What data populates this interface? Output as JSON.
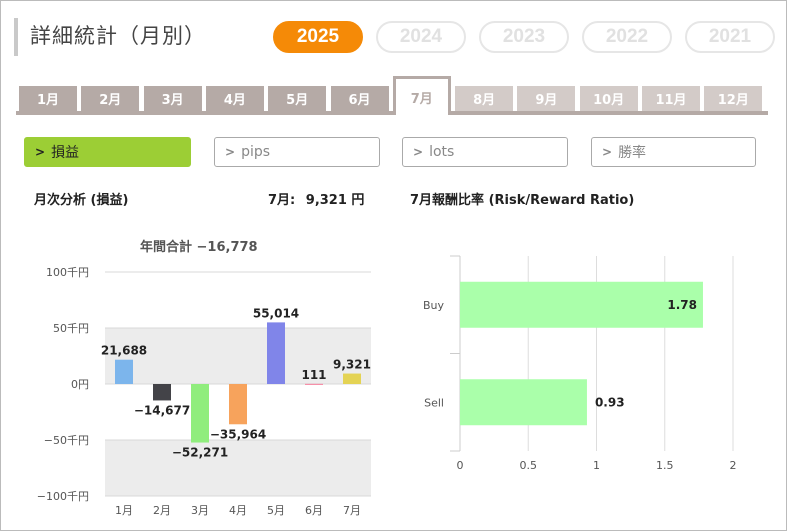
{
  "title": "詳細統計（月別）",
  "years": [
    {
      "label": "2025",
      "active": true
    },
    {
      "label": "2024",
      "active": false
    },
    {
      "label": "2023",
      "active": false
    },
    {
      "label": "2022",
      "active": false
    },
    {
      "label": "2021",
      "active": false
    }
  ],
  "months": [
    {
      "label": "1月",
      "state": "past"
    },
    {
      "label": "2月",
      "state": "past"
    },
    {
      "label": "3月",
      "state": "past"
    },
    {
      "label": "4月",
      "state": "past"
    },
    {
      "label": "5月",
      "state": "past"
    },
    {
      "label": "6月",
      "state": "past"
    },
    {
      "label": "7月",
      "state": "active"
    },
    {
      "label": "8月",
      "state": "future"
    },
    {
      "label": "9月",
      "state": "future"
    },
    {
      "label": "10月",
      "state": "future"
    },
    {
      "label": "11月",
      "state": "future"
    },
    {
      "label": "12月",
      "state": "future"
    }
  ],
  "filters": [
    {
      "label": "損益",
      "active": true
    },
    {
      "label": "pips",
      "active": false
    },
    {
      "label": "lots",
      "active": false
    },
    {
      "label": "勝率",
      "active": false
    }
  ],
  "monthly": {
    "title": "月次分析 (損益)",
    "current_month_label": "7月:",
    "current_month_value": "9,321 円",
    "annual_total": "年間合計 −16,778"
  },
  "rr": {
    "title": "7月報酬比率 (Risk/Reward Ratio)"
  },
  "chart_data": [
    {
      "type": "bar",
      "title": "年間合計 −16,778",
      "categories": [
        "1月",
        "2月",
        "3月",
        "4月",
        "5月",
        "6月",
        "7月"
      ],
      "values": [
        21688,
        -14677,
        -52271,
        -35964,
        55014,
        111,
        9321
      ],
      "value_labels": [
        "21,688",
        "−14,677",
        "−52,271",
        "−35,964",
        "55,014",
        "111",
        "9,321"
      ],
      "colors": [
        "#7cb5ec",
        "#434348",
        "#90ed7d",
        "#f7a35c",
        "#8085e9",
        "#f15c80",
        "#e4d354"
      ],
      "yticks": [
        100000,
        50000,
        0,
        -50000,
        -100000
      ],
      "ytick_labels": [
        "100千円",
        "50千円",
        "0円",
        "−50千円",
        "−100千円"
      ],
      "ylim": [
        -100000,
        100000
      ],
      "plot_bands": [
        [
          0,
          50000
        ],
        [
          -100000,
          -50000
        ]
      ],
      "band_color": "#ececec"
    },
    {
      "type": "bar",
      "orientation": "horizontal",
      "categories": [
        "Buy",
        "Sell"
      ],
      "values": [
        1.78,
        0.93
      ],
      "value_labels": [
        "1.78",
        "0.93"
      ],
      "color": "#aaffaa",
      "xticks": [
        0,
        0.5,
        1,
        1.5,
        2
      ],
      "xtick_labels": [
        "0",
        "0.5",
        "1",
        "1.5",
        "2"
      ],
      "xlim": [
        0,
        2
      ]
    }
  ]
}
